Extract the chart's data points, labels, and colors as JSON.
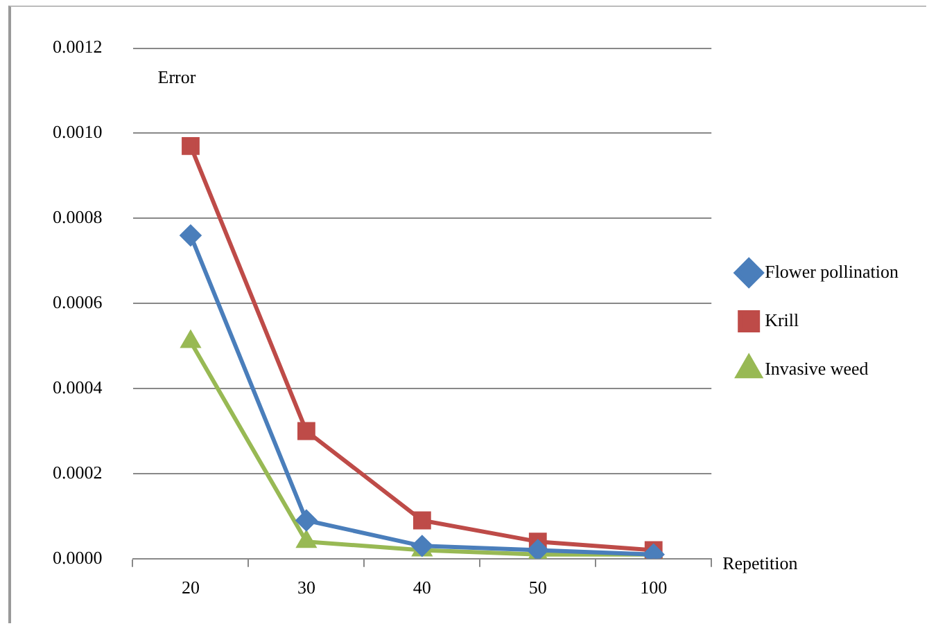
{
  "chart_data": {
    "type": "line",
    "xlabel": "Repetition",
    "ylabel": "Error",
    "categories": [
      "20",
      "30",
      "40",
      "50",
      "100"
    ],
    "ylim": [
      0,
      0.0012
    ],
    "yticks": [
      {
        "value": 0,
        "label": "0.0000"
      },
      {
        "value": 0.0002,
        "label": "0.0002"
      },
      {
        "value": 0.0004,
        "label": "0.0004"
      },
      {
        "value": 0.0006,
        "label": "0.0006"
      },
      {
        "value": 0.0008,
        "label": "0.0008"
      },
      {
        "value": 0.001,
        "label": "0.0010"
      },
      {
        "value": 0.0012,
        "label": "0.0012"
      }
    ],
    "grid": "y",
    "legend": "right",
    "series": [
      {
        "name": "Flower pollination",
        "color": "#4a7ebb",
        "marker": "diamond",
        "values": [
          0.00076,
          9e-05,
          3e-05,
          2e-05,
          1e-05
        ]
      },
      {
        "name": "Krill",
        "color": "#be4b48",
        "marker": "square",
        "values": [
          0.00097,
          0.0003,
          9e-05,
          4e-05,
          2e-05
        ]
      },
      {
        "name": "Invasive weed",
        "color": "#98b954",
        "marker": "triangle",
        "values": [
          0.00051,
          4e-05,
          2e-05,
          1e-05,
          1e-05
        ]
      }
    ]
  }
}
